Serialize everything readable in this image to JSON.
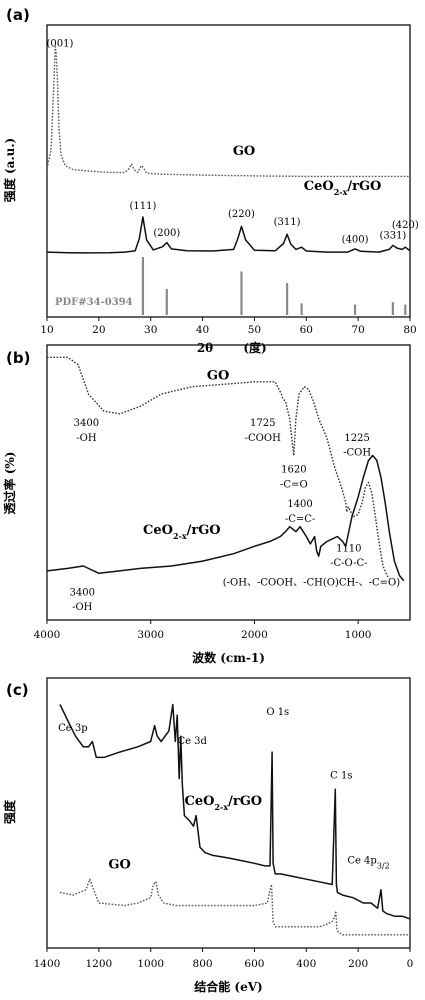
{
  "chart_data": [
    {
      "id": "a",
      "type": "line",
      "panel_label": "(a)",
      "xlabel": "2θ",
      "xlabel_unit": "(度)",
      "ylabel": "强度 (a.u.)",
      "xlim": [
        10,
        80
      ],
      "xticks": [
        10,
        20,
        30,
        40,
        50,
        60,
        70,
        80
      ],
      "series": [
        {
          "name": "GO",
          "style": "dotted",
          "color": "#555555",
          "x": [
            10,
            10.8,
            11.3,
            11.6,
            11.8,
            12.0,
            12.3,
            12.7,
            13.5,
            15,
            18,
            22,
            25,
            25.8,
            26.3,
            26.8,
            27.5,
            28.2,
            28.6,
            29.2,
            32,
            40,
            50,
            60,
            70,
            80
          ],
          "y": [
            0.55,
            0.62,
            0.85,
            1.0,
            0.97,
            0.88,
            0.7,
            0.6,
            0.56,
            0.545,
            0.54,
            0.535,
            0.535,
            0.548,
            0.565,
            0.545,
            0.535,
            0.56,
            0.552,
            0.532,
            0.528,
            0.525,
            0.522,
            0.52,
            0.52,
            0.52
          ]
        },
        {
          "name": "CeO2-x/rGO",
          "style": "solid",
          "color": "#111111",
          "x": [
            10,
            14,
            18,
            22,
            25,
            27,
            27.8,
            28.5,
            29.2,
            30.5,
            32.3,
            33.1,
            34,
            37,
            42,
            46,
            46.8,
            47.5,
            48.3,
            50,
            54,
            55.6,
            56.3,
            57,
            58,
            59.1,
            60,
            64,
            68,
            69.4,
            70.5,
            74,
            76,
            76.7,
            77.5,
            78.5,
            79.1,
            80
          ],
          "y": [
            0.24,
            0.238,
            0.237,
            0.238,
            0.24,
            0.245,
            0.29,
            0.37,
            0.285,
            0.248,
            0.26,
            0.275,
            0.252,
            0.245,
            0.244,
            0.25,
            0.29,
            0.335,
            0.285,
            0.247,
            0.245,
            0.272,
            0.306,
            0.27,
            0.25,
            0.258,
            0.244,
            0.24,
            0.24,
            0.252,
            0.243,
            0.24,
            0.25,
            0.265,
            0.255,
            0.25,
            0.258,
            0.245
          ]
        }
      ],
      "reference": {
        "name": "PDF#34-0394",
        "color": "#888888",
        "x": [
          28.5,
          33.1,
          47.5,
          56.3,
          59.1,
          69.4,
          76.7,
          79.1
        ],
        "height": [
          1.0,
          0.45,
          0.75,
          0.55,
          0.2,
          0.18,
          0.22,
          0.18
        ]
      },
      "annotations": [
        {
          "text": "(001)",
          "x": 12.5,
          "y": 1.0
        },
        {
          "text": "GO",
          "x": 48,
          "y": 0.6,
          "kind": "series"
        },
        {
          "text": "CeO2-x/rGO",
          "x": 67,
          "y": 0.47,
          "kind": "series"
        },
        {
          "text": "(111)",
          "x": 28.5,
          "y": 0.4
        },
        {
          "text": "(200)",
          "x": 33.1,
          "y": 0.3
        },
        {
          "text": "(220)",
          "x": 47.5,
          "y": 0.37
        },
        {
          "text": "(311)",
          "x": 56.3,
          "y": 0.34
        },
        {
          "text": "(400)",
          "x": 69.4,
          "y": 0.275
        },
        {
          "text": "(331)",
          "x": 76.7,
          "y": 0.29
        },
        {
          "text": "(420)",
          "x": 79.1,
          "y": 0.33
        }
      ]
    },
    {
      "id": "b",
      "type": "line",
      "panel_label": "(b)",
      "xlabel": "波数 (cm-1)",
      "ylabel": "透过率 (%)",
      "xlim": [
        4000,
        500
      ],
      "xticks": [
        4000,
        3000,
        2000,
        1000
      ],
      "series": [
        {
          "name": "GO",
          "style": "dotted",
          "color": "#333333",
          "x": [
            4000,
            3800,
            3700,
            3600,
            3450,
            3300,
            3100,
            2900,
            2600,
            2300,
            2000,
            1800,
            1740,
            1725,
            1700,
            1660,
            1640,
            1620,
            1600,
            1570,
            1520,
            1480,
            1430,
            1380,
            1300,
            1225,
            1160,
            1120,
            1110,
            1095,
            1070,
            1050,
            1000,
            960,
            930,
            900,
            870,
            840,
            800,
            760,
            720,
            700
          ],
          "y": [
            0.95,
            0.95,
            0.92,
            0.8,
            0.73,
            0.72,
            0.75,
            0.8,
            0.83,
            0.84,
            0.85,
            0.85,
            0.8,
            0.78,
            0.77,
            0.7,
            0.62,
            0.55,
            0.7,
            0.8,
            0.83,
            0.82,
            0.77,
            0.7,
            0.62,
            0.5,
            0.42,
            0.36,
            0.32,
            0.34,
            0.32,
            0.3,
            0.31,
            0.36,
            0.42,
            0.44,
            0.4,
            0.32,
            0.2,
            0.1,
            0.06,
            0.05
          ]
        },
        {
          "name": "CeO2-x/rGO",
          "style": "solid",
          "color": "#111111",
          "x": [
            4000,
            3800,
            3650,
            3500,
            3300,
            3100,
            2800,
            2500,
            2200,
            2000,
            1850,
            1750,
            1700,
            1660,
            1600,
            1560,
            1500,
            1460,
            1420,
            1400,
            1380,
            1360,
            1300,
            1200,
            1150,
            1120,
            1110,
            1090,
            1060,
            1000,
            950,
            900,
            860,
            820,
            780,
            740,
            700,
            650,
            600,
            560
          ],
          "y": [
            0.08,
            0.09,
            0.1,
            0.07,
            0.08,
            0.09,
            0.1,
            0.12,
            0.15,
            0.18,
            0.2,
            0.22,
            0.24,
            0.26,
            0.24,
            0.26,
            0.22,
            0.19,
            0.22,
            0.16,
            0.14,
            0.18,
            0.2,
            0.22,
            0.2,
            0.18,
            0.2,
            0.24,
            0.3,
            0.38,
            0.46,
            0.53,
            0.55,
            0.53,
            0.46,
            0.36,
            0.24,
            0.12,
            0.06,
            0.04
          ]
        }
      ],
      "annotations": [
        {
          "text": "GO",
          "x": 2350,
          "y": 0.86,
          "kind": "series"
        },
        {
          "text": "3400",
          "x": 3620,
          "y": 0.67
        },
        {
          "text": "-OH",
          "x": 3620,
          "y": 0.61
        },
        {
          "text": "1725",
          "x": 1920,
          "y": 0.67
        },
        {
          "text": "-COOH",
          "x": 1920,
          "y": 0.61
        },
        {
          "text": "1620",
          "x": 1620,
          "y": 0.48
        },
        {
          "text": "-C=O",
          "x": 1620,
          "y": 0.42
        },
        {
          "text": "1225",
          "x": 1010,
          "y": 0.61
        },
        {
          "text": "-COH",
          "x": 1010,
          "y": 0.55
        },
        {
          "text": "1400",
          "x": 1560,
          "y": 0.34
        },
        {
          "text": "-C=C-",
          "x": 1560,
          "y": 0.28
        },
        {
          "text": "CeO2-x/rGO",
          "x": 2700,
          "y": 0.23,
          "kind": "series"
        },
        {
          "text": "1110",
          "x": 1090,
          "y": 0.16
        },
        {
          "text": "-C-O-C-",
          "x": 1090,
          "y": 0.1
        },
        {
          "text": "(-OH、-COOH、-CH(O)CH-、-C=O)",
          "x": 1450,
          "y": 0.02
        },
        {
          "text": "3400",
          "x": 3660,
          "y": -0.02
        },
        {
          "text": "-OH",
          "x": 3660,
          "y": -0.08
        }
      ]
    },
    {
      "id": "c",
      "type": "line",
      "panel_label": "(c)",
      "xlabel": "结合能 (eV)",
      "ylabel": "强度",
      "xlim": [
        1400,
        0
      ],
      "xticks": [
        1400,
        1200,
        1000,
        800,
        600,
        400,
        200,
        0
      ],
      "series": [
        {
          "name": "CeO2-x/rGO",
          "style": "solid",
          "color": "#111111",
          "x": [
            1350,
            1320,
            1290,
            1260,
            1240,
            1225,
            1210,
            1180,
            1120,
            1050,
            1000,
            985,
            975,
            960,
            930,
            915,
            905,
            898,
            890,
            884,
            878,
            870,
            850,
            835,
            825,
            810,
            790,
            760,
            700,
            650,
            600,
            560,
            540,
            532,
            528,
            520,
            500,
            450,
            400,
            350,
            300,
            288,
            284,
            280,
            260,
            220,
            180,
            150,
            125,
            112,
            105,
            90,
            60,
            30,
            0
          ],
          "y": [
            0.9,
            0.84,
            0.78,
            0.74,
            0.74,
            0.76,
            0.7,
            0.7,
            0.72,
            0.74,
            0.76,
            0.82,
            0.78,
            0.76,
            0.8,
            0.9,
            0.76,
            0.86,
            0.62,
            0.78,
            0.6,
            0.48,
            0.46,
            0.44,
            0.48,
            0.36,
            0.34,
            0.33,
            0.32,
            0.31,
            0.3,
            0.29,
            0.29,
            0.72,
            0.3,
            0.26,
            0.26,
            0.25,
            0.24,
            0.23,
            0.22,
            0.58,
            0.22,
            0.19,
            0.18,
            0.17,
            0.15,
            0.15,
            0.13,
            0.2,
            0.12,
            0.11,
            0.1,
            0.1,
            0.09
          ]
        },
        {
          "name": "GO",
          "style": "dotted",
          "color": "#555555",
          "x": [
            1350,
            1300,
            1250,
            1235,
            1220,
            1200,
            1100,
            1050,
            1000,
            990,
            980,
            970,
            950,
            900,
            800,
            700,
            600,
            550,
            540,
            534,
            528,
            520,
            500,
            450,
            400,
            350,
            320,
            300,
            290,
            286,
            282,
            276,
            260,
            200,
            150,
            100,
            50,
            0
          ],
          "y": [
            0.19,
            0.18,
            0.2,
            0.24,
            0.2,
            0.15,
            0.14,
            0.15,
            0.17,
            0.22,
            0.23,
            0.18,
            0.15,
            0.14,
            0.14,
            0.14,
            0.14,
            0.15,
            0.2,
            0.22,
            0.08,
            0.06,
            0.06,
            0.06,
            0.06,
            0.06,
            0.07,
            0.08,
            0.1,
            0.12,
            0.05,
            0.04,
            0.03,
            0.03,
            0.03,
            0.03,
            0.03,
            0.03
          ]
        }
      ],
      "annotations": [
        {
          "text": "Ce 3p",
          "x": 1300,
          "y": 0.8
        },
        {
          "text": "Ce 3d",
          "x": 840,
          "y": 0.75
        },
        {
          "text": "O 1s",
          "x": 510,
          "y": 0.86
        },
        {
          "text": "CeO2-x/rGO",
          "x": 720,
          "y": 0.52,
          "kind": "series"
        },
        {
          "text": "C 1s",
          "x": 265,
          "y": 0.62
        },
        {
          "text": "Ce 4p3/2",
          "x": 160,
          "y": 0.3
        },
        {
          "text": "GO",
          "x": 1120,
          "y": 0.28,
          "kind": "series"
        }
      ]
    }
  ]
}
